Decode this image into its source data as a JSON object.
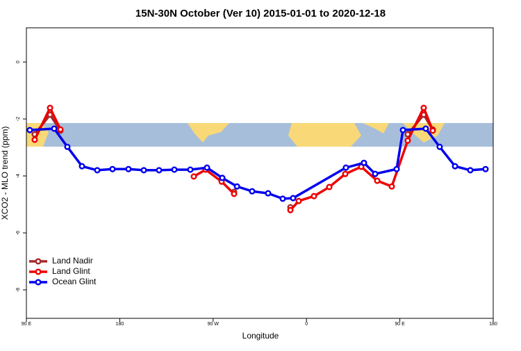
{
  "chart_data": {
    "type": "line",
    "title": "15N-30N October (Ver 10)   2015-01-01 to 2020-12-18",
    "x_label": "Longitude",
    "y_label": "XCO2 - MLO trend (ppm)",
    "xlim": [
      90,
      540
    ],
    "ylim": [
      -9,
      1.2
    ],
    "xticks": [
      {
        "value": 90,
        "label": "90 E"
      },
      180,
      {
        "value": 270,
        "label": "90 W"
      },
      {
        "value": 360,
        "label": "0"
      },
      {
        "value": 450,
        "label": "90 E"
      },
      {
        "value": 540,
        "label": "180"
      }
    ],
    "yticks": [
      0,
      -2,
      -4,
      -6,
      -8
    ],
    "legend": "bottom-left",
    "series": [
      {
        "name": "Land Nadir",
        "color": "#a52a2a",
        "x": [
          98,
          112.8,
          122.8,
          null,
          290.2,
          null,
          344.5,
          null,
          457.6,
          473,
          481.7
        ],
        "values": [
          -2.54,
          -1.85,
          -2.41,
          null,
          -4.56,
          null,
          -5.1,
          null,
          -2.54,
          -1.85,
          -2.37
        ]
      },
      {
        "name": "Land Glint",
        "color": "#ee0000",
        "x": [
          98,
          112.8,
          122.8,
          null,
          251.4,
          262.8,
          278.2,
          290.2,
          null,
          344.5,
          352.5,
          367.2,
          382,
          397.4,
          412.8,
          428.2,
          442.2,
          457.6,
          473,
          481.7
        ],
        "values": [
          -2.73,
          -1.61,
          -2.37,
          null,
          -4.02,
          -3.78,
          -4.2,
          -4.63,
          null,
          -5.2,
          -4.88,
          -4.71,
          -4.39,
          -3.93,
          -3.68,
          -4.17,
          -4.37,
          -2.76,
          -1.61,
          -2.41
        ]
      },
      {
        "name": "Ocean Glint",
        "color": "#0000ee",
        "x": [
          93.3,
          116.8,
          129.5,
          143.6,
          158.3,
          173,
          188.4,
          203.2,
          217.9,
          232.6,
          248,
          264.1,
          278.8,
          293,
          307.6,
          323,
          337.1,
          347.1,
          398,
          415.4,
          426.2,
          446.9,
          453,
          475,
          488.4,
          503.2,
          517.9,
          532.6
        ],
        "values": [
          -2.39,
          -2.34,
          -2.98,
          -3.66,
          -3.8,
          -3.76,
          -3.76,
          -3.8,
          -3.8,
          -3.78,
          -3.78,
          -3.71,
          -4.07,
          -4.37,
          -4.54,
          -4.61,
          -4.8,
          -4.78,
          -3.71,
          -3.54,
          -3.93,
          -3.76,
          -2.39,
          -2.34,
          -2.98,
          -3.66,
          -3.8,
          -3.76
        ]
      }
    ]
  }
}
